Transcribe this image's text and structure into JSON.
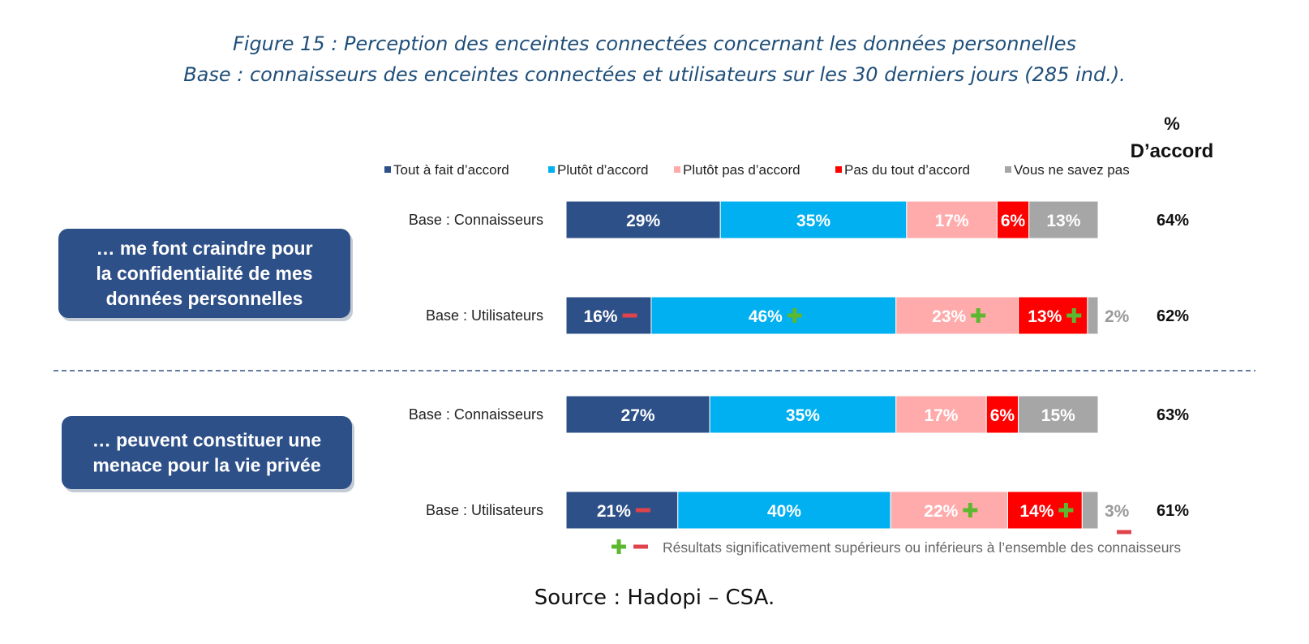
{
  "title": "Figure 15 : Perception des enceintes connectées concernant les données personnelles",
  "subtitle": "Base : connaisseurs des enceintes connectées et utilisateurs sur les 30 derniers jours (285 ind.).",
  "source": "Source : Hadopi – CSA.",
  "accord_header": "%",
  "accord_header2": "D’accord",
  "colors": {
    "tout": "#2e5088",
    "plutot": "#00b0f0",
    "plutot_pas": "#ffabab",
    "pas_du_tout": "#ff0000",
    "nsp": "#a6a6a6",
    "group_box": "#2e5088",
    "plus": "#5cb82e",
    "minus": "#e0434b"
  },
  "footnote": "Résultats significativement supérieurs ou inférieurs à l’ensemble des connaisseurs",
  "chart_data": {
    "type": "bar",
    "orientation": "horizontal",
    "stacked": true,
    "unit": "%",
    "xlim": [
      0,
      100
    ],
    "legend_position": "top",
    "series_names": [
      "Tout à fait d’accord",
      "Plutôt d’accord",
      "Plutôt pas d’accord",
      "Pas du tout d’accord",
      "Vous ne savez pas"
    ],
    "groups": [
      {
        "label": "… me font craindre pour la confidentialité de mes données personnelles",
        "label_lines": [
          "… me font craindre pour",
          "la confidentialité de mes",
          "données personnelles"
        ],
        "rows": [
          {
            "base": "Base : Connaisseurs",
            "values": [
              29,
              35,
              17,
              6,
              13
            ],
            "labels": [
              "29%",
              "35%",
              "17%",
              "6%",
              "13%"
            ],
            "signif": [
              "",
              "",
              "",
              "",
              ""
            ],
            "accord": "64%"
          },
          {
            "base": "Base : Utilisateurs",
            "values": [
              16,
              46,
              23,
              13,
              2
            ],
            "labels": [
              "16%",
              "46%",
              "23%",
              "13%",
              "2%"
            ],
            "signif": [
              "-",
              "+",
              "+",
              "+",
              ""
            ],
            "accord": "62%"
          }
        ]
      },
      {
        "label": "… peuvent constituer une menace pour la vie privée",
        "label_lines": [
          "… peuvent constituer une",
          "menace pour la vie privée"
        ],
        "rows": [
          {
            "base": "Base : Connaisseurs",
            "values": [
              27,
              35,
              17,
              6,
              15
            ],
            "labels": [
              "27%",
              "35%",
              "17%",
              "6%",
              "15%"
            ],
            "signif": [
              "",
              "",
              "",
              "",
              ""
            ],
            "accord": "63%"
          },
          {
            "base": "Base : Utilisateurs",
            "values": [
              21,
              40,
              22,
              14,
              3
            ],
            "labels": [
              "21%",
              "40%",
              "22%",
              "14%",
              "3%"
            ],
            "signif": [
              "-",
              "",
              "+",
              "+",
              "-"
            ],
            "accord": "61%"
          }
        ]
      }
    ]
  }
}
